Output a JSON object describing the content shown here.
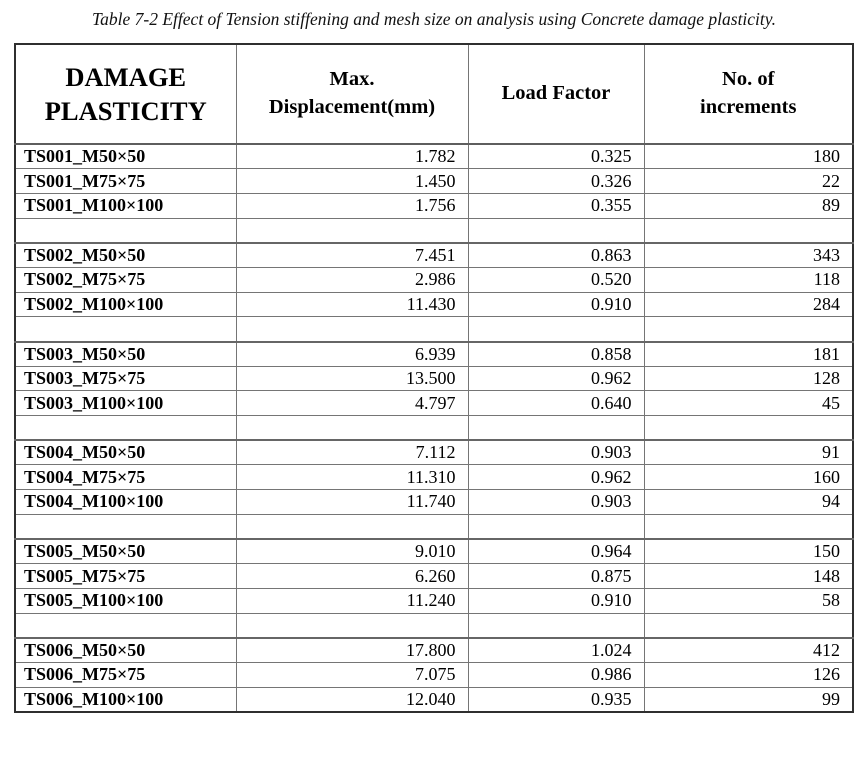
{
  "caption": "Table 7-2 Effect of Tension stiffening and mesh size on analysis using Concrete damage plasticity.",
  "colors": {
    "background": "#ffffff",
    "text": "#000000",
    "border_outer": "#2f2f2f",
    "border_inner": "#757575"
  },
  "table": {
    "headers": [
      {
        "text": "DAMAGE\nPLASTICITY"
      },
      {
        "text": "Max.\nDisplacement(mm)"
      },
      {
        "text": "Load Factor"
      },
      {
        "text": "No. of\nincrements"
      }
    ],
    "rows": [
      {
        "label": "TS001_M50×50",
        "max_displacement_mm": "1.782",
        "load_factor": "0.325",
        "increments": "180"
      },
      {
        "label": "TS001_M75×75",
        "max_displacement_mm": "1.450",
        "load_factor": "0.326",
        "increments": "22"
      },
      {
        "label": "TS001_M100×100",
        "max_displacement_mm": "1.756",
        "load_factor": "0.355",
        "increments": "89"
      },
      {
        "blank": true
      },
      {
        "label": "TS002_M50×50",
        "max_displacement_mm": "7.451",
        "load_factor": "0.863",
        "increments": "343"
      },
      {
        "label": "TS002_M75×75",
        "max_displacement_mm": "2.986",
        "load_factor": "0.520",
        "increments": "118"
      },
      {
        "label": "TS002_M100×100",
        "max_displacement_mm": "11.430",
        "load_factor": "0.910",
        "increments": "284"
      },
      {
        "blank": true
      },
      {
        "label": "TS003_M50×50",
        "max_displacement_mm": "6.939",
        "load_factor": "0.858",
        "increments": "181"
      },
      {
        "label": "TS003_M75×75",
        "max_displacement_mm": "13.500",
        "load_factor": "0.962",
        "increments": "128"
      },
      {
        "label": "TS003_M100×100",
        "max_displacement_mm": "4.797",
        "load_factor": "0.640",
        "increments": "45"
      },
      {
        "blank": true
      },
      {
        "label": "TS004_M50×50",
        "max_displacement_mm": "7.112",
        "load_factor": "0.903",
        "increments": "91"
      },
      {
        "label": "TS004_M75×75",
        "max_displacement_mm": "11.310",
        "load_factor": "0.962",
        "increments": "160"
      },
      {
        "label": "TS004_M100×100",
        "max_displacement_mm": "11.740",
        "load_factor": "0.903",
        "increments": "94"
      },
      {
        "blank": true
      },
      {
        "label": "TS005_M50×50",
        "max_displacement_mm": "9.010",
        "load_factor": "0.964",
        "increments": "150"
      },
      {
        "label": "TS005_M75×75",
        "max_displacement_mm": "6.260",
        "load_factor": "0.875",
        "increments": "148"
      },
      {
        "label": "TS005_M100×100",
        "max_displacement_mm": "11.240",
        "load_factor": "0.910",
        "increments": "58"
      },
      {
        "blank": true
      },
      {
        "label": "TS006_M50×50",
        "max_displacement_mm": "17.800",
        "load_factor": "1.024",
        "increments": "412"
      },
      {
        "label": "TS006_M75×75",
        "max_displacement_mm": "7.075",
        "load_factor": "0.986",
        "increments": "126"
      },
      {
        "label": "TS006_M100×100",
        "max_displacement_mm": "12.040",
        "load_factor": "0.935",
        "increments": "99"
      }
    ]
  }
}
